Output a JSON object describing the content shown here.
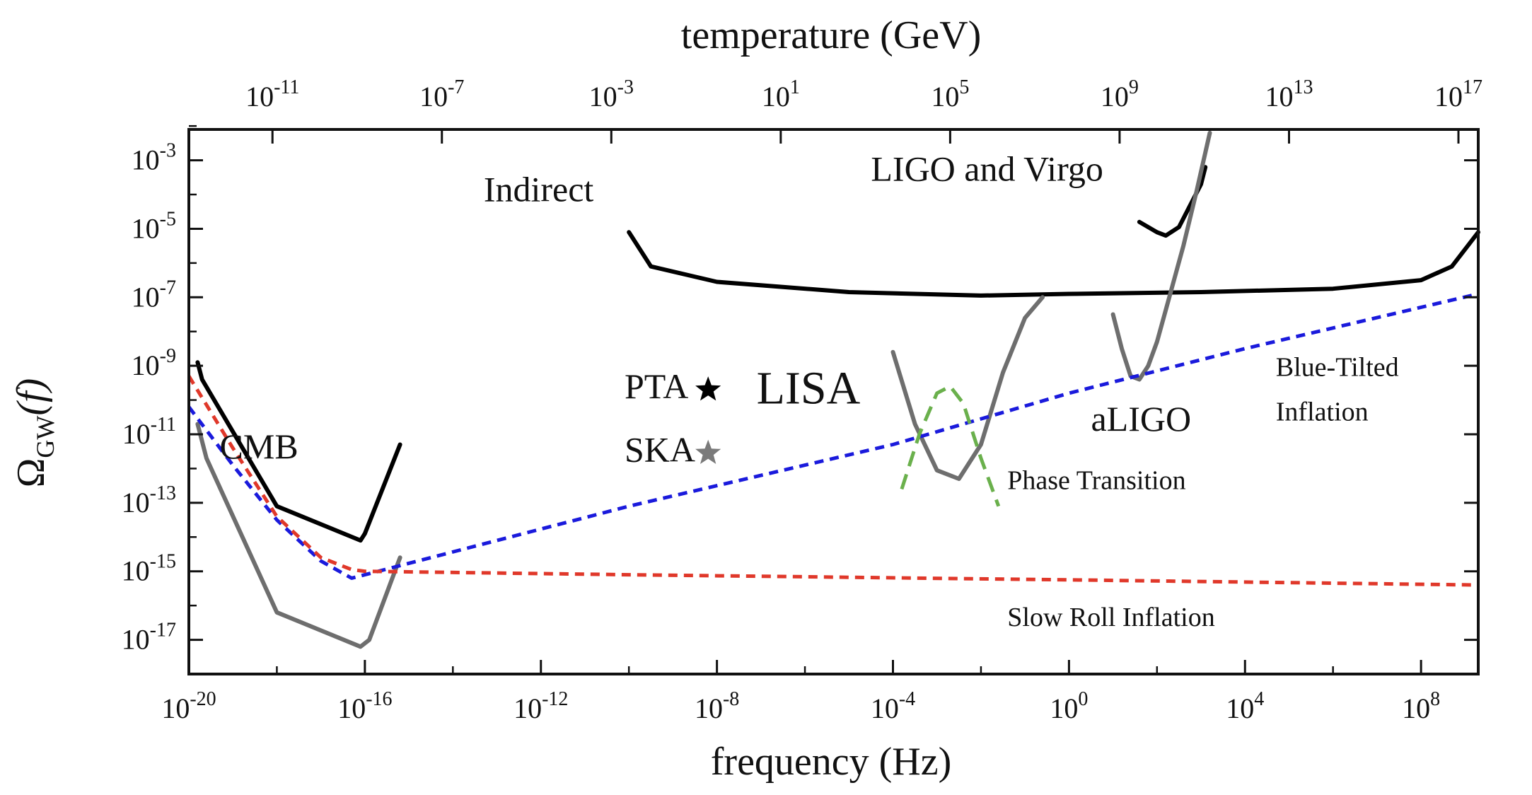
{
  "chart_data": {
    "type": "line",
    "title": "",
    "xlabel": "frequency (Hz)",
    "ylabel": "Ω_GW(f)",
    "ylabel_main": "Ω",
    "ylabel_sub": "GW",
    "ylabel_arg": "(f)",
    "top_xlabel": "temperature (GeV)",
    "xscale": "log10",
    "yscale": "log10",
    "xlim_log10": [
      -20,
      9.3
    ],
    "ylim_log10": [
      -18,
      -2.1
    ],
    "x_ticks": [
      {
        "exp": "-20",
        "label": "10",
        "sup": "-20"
      },
      {
        "exp": "-16",
        "label": "10",
        "sup": "-16"
      },
      {
        "exp": "-12",
        "label": "10",
        "sup": "-12"
      },
      {
        "exp": "-8",
        "label": "10",
        "sup": "-8"
      },
      {
        "exp": "-4",
        "label": "10",
        "sup": "-4"
      },
      {
        "exp": "0",
        "label": "10",
        "sup": "0"
      },
      {
        "exp": "4",
        "label": "10",
        "sup": "4"
      },
      {
        "exp": "8",
        "label": "10",
        "sup": "8"
      }
    ],
    "y_ticks": [
      {
        "exp": "-3",
        "label": "10",
        "sup": "-3"
      },
      {
        "exp": "-5",
        "label": "10",
        "sup": "-5"
      },
      {
        "exp": "-7",
        "label": "10",
        "sup": "-7"
      },
      {
        "exp": "-9",
        "label": "10",
        "sup": "-9"
      },
      {
        "exp": "-11",
        "label": "10",
        "sup": "-11"
      },
      {
        "exp": "-13",
        "label": "10",
        "sup": "-13"
      },
      {
        "exp": "-15",
        "label": "10",
        "sup": "-15"
      },
      {
        "exp": "-17",
        "label": "10",
        "sup": "-17"
      }
    ],
    "top_ticks": [
      {
        "freq_exp": -18.1,
        "label": "10",
        "sup": "-11"
      },
      {
        "freq_exp": -14.25,
        "label": "10",
        "sup": "-7"
      },
      {
        "freq_exp": -10.4,
        "label": "10",
        "sup": "-3"
      },
      {
        "freq_exp": -6.55,
        "label": "10",
        "sup": "1"
      },
      {
        "freq_exp": -2.7,
        "label": "10",
        "sup": "5"
      },
      {
        "freq_exp": 1.15,
        "label": "10",
        "sup": "9"
      },
      {
        "freq_exp": 5.0,
        "label": "10",
        "sup": "13"
      },
      {
        "freq_exp": 8.85,
        "label": "10",
        "sup": "17"
      }
    ],
    "series": [
      {
        "name": "CMB",
        "color": "#000000",
        "dash": "solid",
        "x_log10": [
          -19.8,
          -19.7,
          -18,
          -16.1,
          -16,
          -15.2
        ],
        "y_log10": [
          -8.9,
          -9.4,
          -13.1,
          -14.1,
          -13.9,
          -11.3
        ]
      },
      {
        "name": "",
        "color": "#6e6e6e",
        "dash": "solid",
        "x_log10": [
          -19.8,
          -19.6,
          -18,
          -16.1,
          -15.9,
          -15.2
        ],
        "y_log10": [
          -10.7,
          -11.7,
          -16.2,
          -17.2,
          -17,
          -14.6
        ]
      },
      {
        "name": "Indirect",
        "color": "#000000",
        "dash": "solid",
        "x_log10": [
          -10,
          -9.5,
          -8,
          -5,
          -2,
          0,
          3,
          6,
          8,
          8.7,
          9.3
        ],
        "y_log10": [
          -5.1,
          -6.1,
          -6.55,
          -6.85,
          -6.95,
          -6.9,
          -6.85,
          -6.75,
          -6.5,
          -6.1,
          -5.1
        ]
      },
      {
        "name": "LIGO and Virgo",
        "color": "#000000",
        "dash": "solid",
        "x_log10": [
          1.6,
          2.0,
          2.2,
          2.5,
          3.0,
          3.1
        ],
        "y_log10": [
          -4.8,
          -5.1,
          -5.2,
          -4.95,
          -3.7,
          -3.2
        ]
      },
      {
        "name": "LISA",
        "color": "#6e6e6e",
        "dash": "solid",
        "x_log10": [
          -4,
          -3.5,
          -3,
          -2.5,
          -2,
          -1.5,
          -1,
          -0.6
        ],
        "y_log10": [
          -8.6,
          -10.7,
          -12.05,
          -12.3,
          -11.3,
          -9.2,
          -7.6,
          -7.0
        ]
      },
      {
        "name": "aLIGO",
        "color": "#6e6e6e",
        "dash": "solid",
        "x_log10": [
          1.0,
          1.2,
          1.4,
          1.6,
          1.8,
          2.0,
          2.3,
          2.6,
          2.9,
          3.2
        ],
        "y_log10": [
          -7.5,
          -8.5,
          -9.3,
          -9.4,
          -9.0,
          -8.3,
          -6.9,
          -5.5,
          -3.9,
          -2.2
        ]
      },
      {
        "name": "Blue-Tilted Inflation",
        "color": "#1a1adc",
        "dash": "dashed",
        "x_log10": [
          -20,
          -19,
          -18,
          -17,
          -16.3,
          -16,
          -10,
          -4,
          0,
          4,
          9.3
        ],
        "y_log10": [
          -10.2,
          -11.9,
          -13.5,
          -14.7,
          -15.2,
          -15.1,
          -13.1,
          -11.3,
          -9.8,
          -8.5,
          -6.9
        ]
      },
      {
        "name": "Slow Roll Inflation",
        "color": "#e0382a",
        "dash": "dashed",
        "x_log10": [
          -20,
          -19,
          -18,
          -17,
          -16.3,
          -16,
          -10,
          0,
          9.3
        ],
        "y_log10": [
          -9.3,
          -11.4,
          -13.4,
          -14.6,
          -14.95,
          -15.0,
          -15.1,
          -15.25,
          -15.4
        ]
      },
      {
        "name": "Phase Transition",
        "color": "#6ab04c",
        "dash": "dashed",
        "x_log10": [
          -3.8,
          -3.4,
          -3.0,
          -2.7,
          -2.4,
          -2.0,
          -1.6
        ],
        "y_log10": [
          -12.6,
          -11.0,
          -9.8,
          -9.6,
          -10.1,
          -11.7,
          -13.1
        ]
      }
    ],
    "points": [
      {
        "name": "PTA",
        "marker": "star",
        "color": "#000000",
        "x_log10": -8.2,
        "y_log10": -9.7
      },
      {
        "name": "SKA",
        "marker": "star",
        "color": "#7a7a7a",
        "x_log10": -8.2,
        "y_log10": -11.55
      }
    ],
    "annotations": [
      {
        "text": "CMB",
        "color": "#000000",
        "size": "large",
        "x_log10": -19.3,
        "y_log10": -11.7
      },
      {
        "text": "Indirect",
        "color": "#000000",
        "size": "large",
        "x_log10": -13.3,
        "y_log10": -4.2
      },
      {
        "text": "LIGO and Virgo",
        "color": "#000000",
        "size": "large",
        "x_log10": -4.5,
        "y_log10": -3.6
      },
      {
        "text": "LISA",
        "color": "#000000",
        "size": "xlarge",
        "x_log10": -7.1,
        "y_log10": -10.1
      },
      {
        "text": "aLIGO",
        "color": "#6e6e6e",
        "size": "large",
        "x_log10": 0.5,
        "y_log10": -10.9
      },
      {
        "text": "Blue-Tilted",
        "color": "#000000",
        "size": "medium",
        "x_log10": 4.7,
        "y_log10": -9.3
      },
      {
        "text": "Inflation",
        "color": "#000000",
        "size": "medium",
        "x_log10": 4.7,
        "y_log10": -10.6
      },
      {
        "text": "Phase Transition",
        "color": "#000000",
        "size": "medium",
        "x_log10": -1.4,
        "y_log10": -12.6
      },
      {
        "text": "Slow Roll Inflation",
        "color": "#000000",
        "size": "medium",
        "x_log10": -1.4,
        "y_log10": -16.6
      },
      {
        "text": "PTA",
        "color": "#000000",
        "size": "large",
        "x_log10": -10.1,
        "y_log10": -9.95
      },
      {
        "text": "SKA",
        "color": "#000000",
        "size": "large",
        "x_log10": -10.1,
        "y_log10": -11.8
      }
    ],
    "grid": false,
    "legend": "none"
  }
}
